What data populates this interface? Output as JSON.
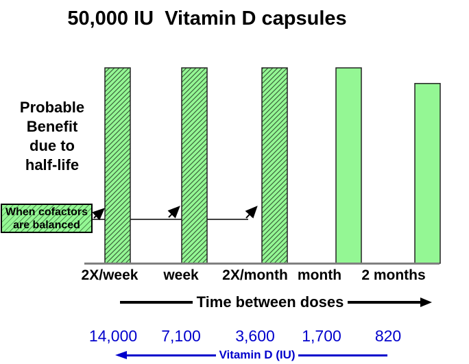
{
  "title": "50,000 IU  Vitamin D capsules",
  "y_axis_label": "Probable\nBenefit\ndue to\nhalf-life",
  "annotation": {
    "text": "When cofactors\nare balanced"
  },
  "x_axis": {
    "arrow_label": "Time between doses"
  },
  "dose_axis": {
    "arrow_label": "Vitamin D (IU)"
  },
  "colors": {
    "bar_fill": "#94F794",
    "bar_border": "#222222",
    "hatch_line": "#335533",
    "axis_line": "#808080",
    "blue": "#0000CC",
    "text": "#000000"
  },
  "chart_data": {
    "type": "bar",
    "title": "50,000 IU  Vitamin D capsules",
    "categories": [
      "2X/week",
      "week",
      "2X/month",
      "month",
      "2 months"
    ],
    "series": [
      {
        "name": "Probable Benefit due to half-life",
        "values": [
          1.0,
          1.0,
          1.0,
          1.0,
          0.92
        ],
        "hatched": [
          true,
          true,
          true,
          false,
          false
        ]
      }
    ],
    "xlabel": "Time between doses",
    "ylabel": "Probable Benefit due to half-life",
    "ylim": [
      0,
      1.05
    ],
    "grid": false,
    "legend": false,
    "yaxis_ticks_visible": false,
    "secondary_x_axis": {
      "label": "Vitamin D (IU)",
      "values": [
        14000,
        7100,
        3600,
        1700,
        820
      ],
      "display": [
        "14,000",
        "7,100",
        "3,600",
        "1,700",
        "820"
      ]
    },
    "annotation": {
      "text": "When cofactors are balanced",
      "applies_to": [
        "2X/week",
        "week",
        "2X/month"
      ]
    }
  }
}
